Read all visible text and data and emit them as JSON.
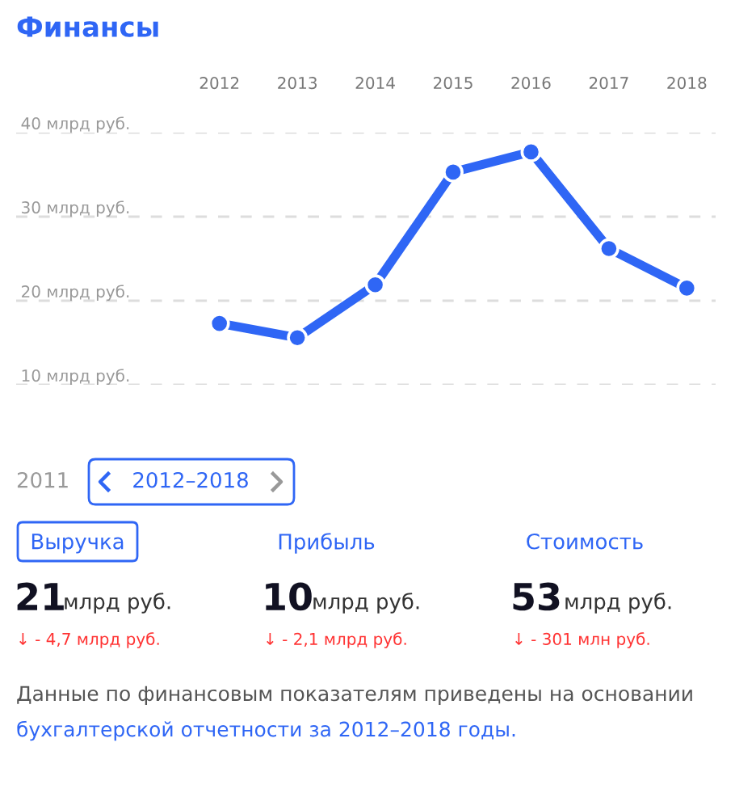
{
  "chart_data": [
    {
      "type": "line",
      "title": "Финансы",
      "categories": [
        "2012",
        "2013",
        "2014",
        "2015",
        "2016",
        "2017",
        "2018"
      ],
      "series": [
        {
          "color": "#2f66f5",
          "values": [
            17.3,
            15.6,
            21.9,
            35.3,
            37.7,
            26.2,
            21.5
          ]
        }
      ],
      "ylim": [
        10,
        40
      ],
      "yticks": [
        {
          "value": 10,
          "label": "10 млрд руб."
        },
        {
          "value": 20,
          "label": "20 млрд руб."
        },
        {
          "value": 30,
          "label": "30 млрд руб."
        },
        {
          "value": 40,
          "label": "40 млрд руб."
        }
      ],
      "grid": "y",
      "marker": "circle",
      "line_style": "solid",
      "legend": false
    },
    {
      "type": "other",
      "annotations": [
        "2011",
        "2012–2018",
        "Выручка",
        "Прибыль",
        "Стоимость",
        "21",
        "млрд руб.",
        "10",
        "млрд руб.",
        "53",
        "млрд руб.",
        "↓ - 4,7 млрд руб.",
        "↓ - 2,1 млрд руб.",
        "↓ - 301 млн руб.",
        "Данные по финансовым показателям приведены на основании",
        "бухгалтерской отчетности за 2012–2018 годы."
      ]
    }
  ]
}
